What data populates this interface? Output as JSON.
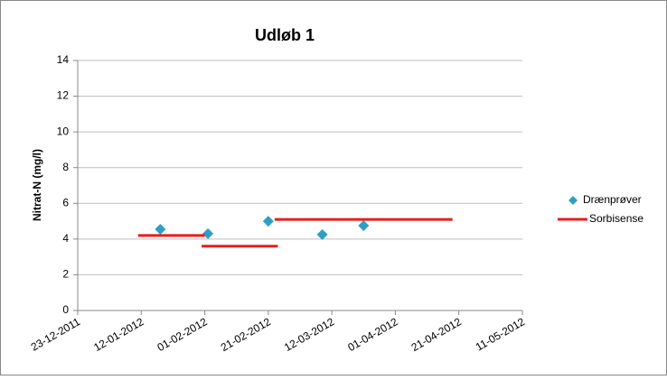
{
  "chart_data": {
    "type": "scatter-line",
    "title": "Udløb 1",
    "y_label": "Nitrat-N (mg/l)",
    "xlim": [
      "23-12-2011",
      "11-05-2012"
    ],
    "xticks": [
      "23-12-2011",
      "12-01-2012",
      "01-02-2012",
      "21-02-2012",
      "12-03-2012",
      "01-04-2012",
      "21-04-2012",
      "11-05-2012"
    ],
    "ylim": [
      0,
      14
    ],
    "yticks": [
      0,
      2,
      4,
      6,
      8,
      10,
      12,
      14
    ],
    "grid": true,
    "legend": "right",
    "series": [
      {
        "name": "Drænprøver",
        "type": "scatter",
        "color": "#2e9fc4",
        "x": [
          "18-01-2012",
          "02-02-2012",
          "21-02-2012",
          "09-03-2012",
          "22-03-2012"
        ],
        "values": [
          4.55,
          4.3,
          5.0,
          4.25,
          4.75
        ]
      },
      {
        "name": "Sorbisense",
        "type": "line",
        "color": "#e3201c",
        "x": [
          "11-01-2012",
          "01-02-2012",
          null,
          "31-01-2012",
          "24-02-2012",
          null,
          "23-02-2012",
          "19-04-2012"
        ],
        "values": [
          4.2,
          4.2,
          null,
          3.6,
          3.6,
          null,
          5.1,
          5.1
        ]
      }
    ]
  }
}
